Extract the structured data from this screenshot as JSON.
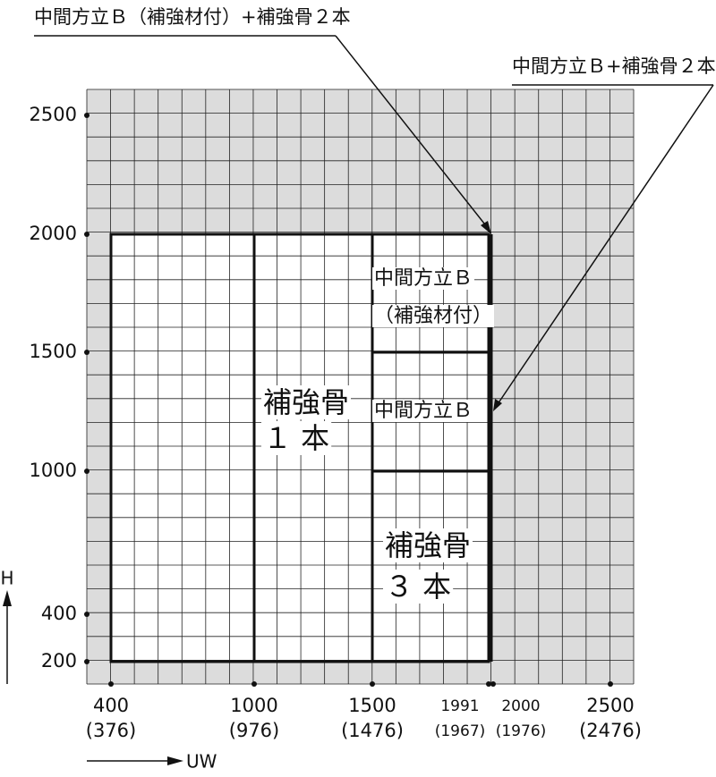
{
  "annotations": {
    "top": "中間方立Ｂ（補強材付）+補強骨２本",
    "right": "中間方立Ｂ+補強骨２本"
  },
  "regions": [
    {
      "lines": [
        "補強骨",
        "１ 本"
      ]
    },
    {
      "lines": [
        "中間方立Ｂ",
        "（補強材付）"
      ]
    },
    {
      "lines": [
        "中間方立Ｂ"
      ]
    },
    {
      "lines": [
        "補強骨",
        "３ 本"
      ]
    }
  ],
  "y_axis": {
    "label": "H",
    "ticks": [
      "2500",
      "2000",
      "1500",
      "1000",
      "400",
      "200"
    ]
  },
  "x_axis": {
    "label": "UW",
    "ticks": [
      {
        "label": "400",
        "sub": "(376)"
      },
      {
        "label": "1000",
        "sub": "(976)"
      },
      {
        "label": "1500",
        "sub": "(1476)"
      },
      {
        "label": "1991",
        "sub": "(1967)"
      },
      {
        "label": "2000",
        "sub": "(1976)"
      },
      {
        "label": "2500",
        "sub": "(2476)"
      }
    ]
  }
}
